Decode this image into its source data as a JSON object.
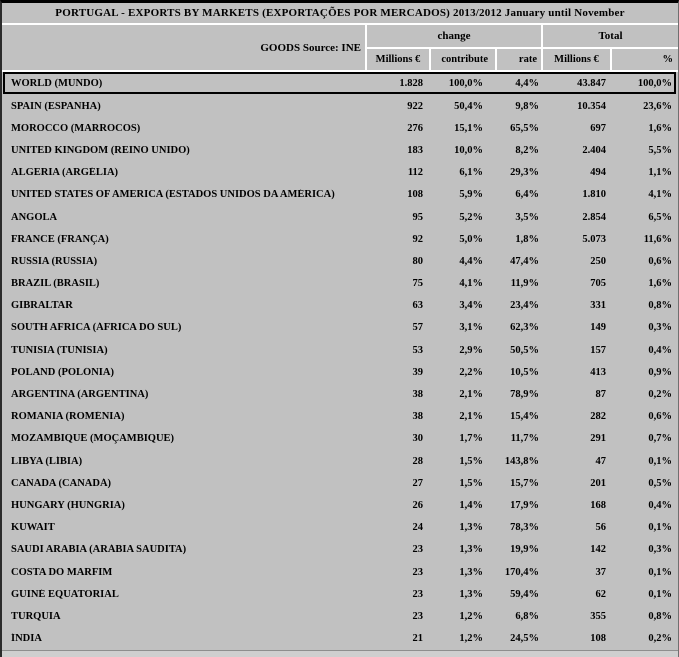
{
  "title": "PORTUGAL - EXPORTS BY MARKETS (EXPORTAÇÕES POR MERCADOS) 2013/2012 January until November",
  "header": {
    "goods_label": "GOODS Source: INE",
    "group_change": "change",
    "group_total": "Total",
    "sub": [
      "Millions €",
      "contribute",
      "rate",
      "Millions €",
      "%"
    ]
  },
  "world_row": [
    "WORLD (MUNDO)",
    "1.828",
    "100,0%",
    "4,4%",
    "43.847",
    "100,0%"
  ],
  "rows": [
    [
      "SPAIN (ESPANHA)",
      "922",
      "50,4%",
      "9,8%",
      "10.354",
      "23,6%"
    ],
    [
      "MOROCCO (MARROCOS)",
      "276",
      "15,1%",
      "65,5%",
      "697",
      "1,6%"
    ],
    [
      "UNITED KINGDOM (REINO UNIDO)",
      "183",
      "10,0%",
      "8,2%",
      "2.404",
      "5,5%"
    ],
    [
      "ALGERIA (ARGÉLIA)",
      "112",
      "6,1%",
      "29,3%",
      "494",
      "1,1%"
    ],
    [
      "UNITED STATES OF AMERICA (ESTADOS UNIDOS DA AMÉRICA)",
      "108",
      "5,9%",
      "6,4%",
      "1.810",
      "4,1%"
    ],
    [
      "ANGOLA",
      "95",
      "5,2%",
      "3,5%",
      "2.854",
      "6,5%"
    ],
    [
      "FRANCE (FRANÇA)",
      "92",
      "5,0%",
      "1,8%",
      "5.073",
      "11,6%"
    ],
    [
      "RUSSIA (RÚSSIA)",
      "80",
      "4,4%",
      "47,4%",
      "250",
      "0,6%"
    ],
    [
      "BRAZIL (BRASIL)",
      "75",
      "4,1%",
      "11,9%",
      "705",
      "1,6%"
    ],
    [
      "GIBRALTAR",
      "63",
      "3,4%",
      "23,4%",
      "331",
      "0,8%"
    ],
    [
      "SOUTH AFRICA (ÁFRICA DO SUL)",
      "57",
      "3,1%",
      "62,3%",
      "149",
      "0,3%"
    ],
    [
      "TUNISIA (TUNÍSIA)",
      "53",
      "2,9%",
      "50,5%",
      "157",
      "0,4%"
    ],
    [
      "POLAND (POLÓNIA)",
      "39",
      "2,2%",
      "10,5%",
      "413",
      "0,9%"
    ],
    [
      "ARGENTINA (ARGENTINA)",
      "38",
      "2,1%",
      "78,9%",
      "87",
      "0,2%"
    ],
    [
      "ROMANIA (ROMÉNIA)",
      "38",
      "2,1%",
      "15,4%",
      "282",
      "0,6%"
    ],
    [
      "MOZAMBIQUE (MOÇAMBIQUE)",
      "30",
      "1,7%",
      "11,7%",
      "291",
      "0,7%"
    ],
    [
      "LIBYA (LÍBIA)",
      "28",
      "1,5%",
      "143,8%",
      "47",
      "0,1%"
    ],
    [
      "CANADA (CANADÁ)",
      "27",
      "1,5%",
      "15,7%",
      "201",
      "0,5%"
    ],
    [
      "HUNGARY (HUNGRIA)",
      "26",
      "1,4%",
      "17,9%",
      "168",
      "0,4%"
    ],
    [
      "KUWAIT",
      "24",
      "1,3%",
      "78,3%",
      "56",
      "0,1%"
    ],
    [
      "SAUDI ARABIA (ARÁBIA SAUDITA)",
      "23",
      "1,3%",
      "19,9%",
      "142",
      "0,3%"
    ],
    [
      "COSTA DO MARFIM",
      "23",
      "1,3%",
      "170,4%",
      "37",
      "0,1%"
    ],
    [
      "GUINÉ EQUATORIAL",
      "23",
      "1,3%",
      "59,4%",
      "62",
      "0,1%"
    ],
    [
      "TURQUIA",
      "23",
      "1,2%",
      "6,8%",
      "355",
      "0,8%"
    ],
    [
      "ÍNDIA",
      "21",
      "1,2%",
      "24,5%",
      "108",
      "0,2%"
    ]
  ]
}
